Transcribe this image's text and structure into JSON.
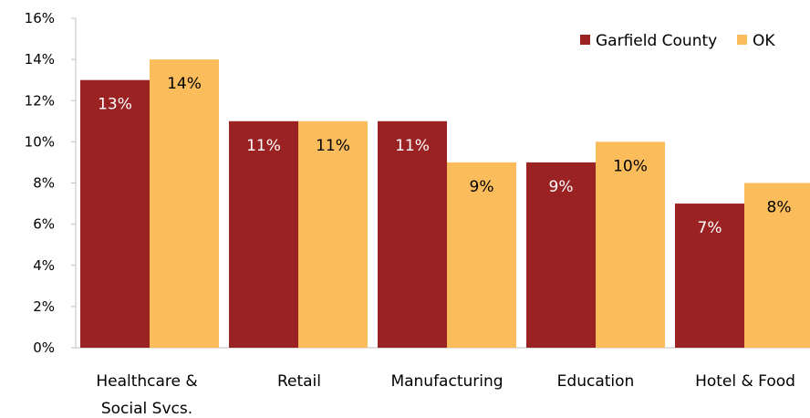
{
  "chart_data": {
    "type": "bar",
    "title": "",
    "xlabel": "",
    "ylabel": "",
    "categories": [
      [
        "Healthcare &",
        "Social Svcs."
      ],
      [
        "Retail"
      ],
      [
        "Manufacturing"
      ],
      [
        "Education"
      ],
      [
        "Hotel & Food"
      ]
    ],
    "series": [
      {
        "name": "Garfield County",
        "color": "#9b2222",
        "values": [
          13,
          11,
          11,
          9,
          7
        ],
        "labels": [
          "13%",
          "11%",
          "11%",
          "9%",
          "7%"
        ],
        "label_color": "#ffffff"
      },
      {
        "name": "OK",
        "color": "#fbbc5b",
        "values": [
          14,
          11,
          9,
          10,
          8
        ],
        "labels": [
          "14%",
          "11%",
          "9%",
          "10%",
          "8%"
        ],
        "label_color": "#000000"
      }
    ],
    "ylim": [
      0,
      16
    ],
    "yticks": [
      "0%",
      "2%",
      "4%",
      "6%",
      "8%",
      "10%",
      "12%",
      "14%",
      "16%"
    ],
    "ytick_values": [
      0,
      2,
      4,
      6,
      8,
      10,
      12,
      14,
      16
    ],
    "grid": false,
    "legend_position": "top-right"
  }
}
